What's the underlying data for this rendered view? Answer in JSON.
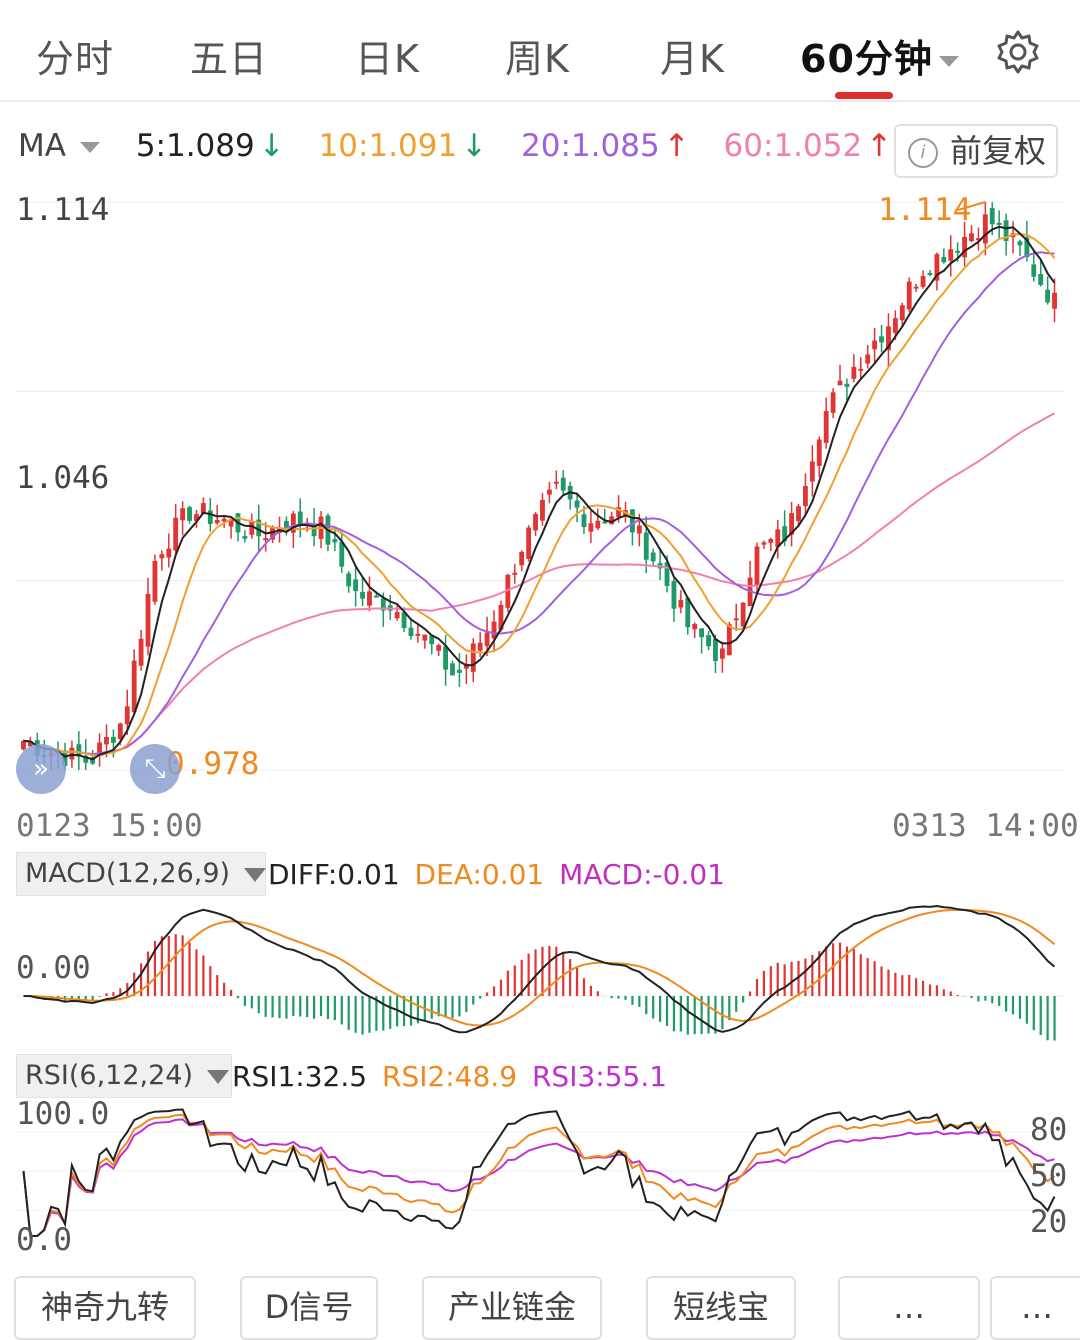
{
  "tabs": [
    {
      "label": "分时"
    },
    {
      "label": "五日"
    },
    {
      "label": "日K"
    },
    {
      "label": "周K"
    },
    {
      "label": "月K"
    },
    {
      "label": "60分钟"
    }
  ],
  "ma": {
    "label": "MA",
    "ma5": "5:1.089",
    "ma5_arrow": "↓",
    "ma10": "10:1.091",
    "ma10_arrow": "↓",
    "ma20": "20:1.085",
    "ma20_arrow": "↑",
    "ma60": "60:1.052",
    "ma60_arrow": "↑",
    "adjust_button": "前复权"
  },
  "price_axis": {
    "top": "1.114",
    "mid": "1.046",
    "bottom": "0.978"
  },
  "time_axis": {
    "start": "0123 15:00",
    "end": "0313 14:00"
  },
  "annotations": {
    "high": "1.114",
    "low": "0.978",
    "left_low_partial": "0.978"
  },
  "macd": {
    "selector": "MACD(12,26,9)",
    "diff": "DIFF:0.01",
    "dea": "DEA:0.01",
    "macd": "MACD:-0.01",
    "zero_label": "0.00"
  },
  "rsi": {
    "selector": "RSI(6,12,24)",
    "rsi1": "RSI1:32.5",
    "rsi2": "RSI2:48.9",
    "rsi3": "RSI3:55.1",
    "top_label": "100.0",
    "bottom_label": "0.0",
    "right_labels": [
      "80",
      "50",
      "20"
    ]
  },
  "bottom_buttons": [
    {
      "label": "神奇九转"
    },
    {
      "label": "D信号"
    },
    {
      "label": "产业链金"
    },
    {
      "label": "短线宝"
    },
    {
      "label": "…"
    },
    {
      "label": "…"
    }
  ],
  "colors": {
    "up": "#e03535",
    "down": "#1e9a66",
    "ma5": "#222222",
    "ma10": "#f0a030",
    "ma20": "#a060e0",
    "ma60": "#f080b0",
    "dea": "#f08a20",
    "macd_val": "#c030c0",
    "rsi3": "#c030d0",
    "accent": "#e02b2b"
  },
  "chart_data": [
    {
      "type": "candlestick",
      "title": "60分钟",
      "ylim": [
        0.978,
        1.114
      ],
      "x_start": "0123 15:00",
      "x_end": "0313 14:00",
      "max": 1.114,
      "min": 0.978,
      "close_path_keypoints": [
        0.985,
        0.982,
        0.98,
        0.99,
        1.03,
        1.04,
        1.038,
        1.034,
        1.038,
        1.036,
        1.02,
        1.018,
        1.01,
        1.0,
        1.012,
        1.032,
        1.045,
        1.038,
        1.04,
        1.028,
        1.012,
        1.005,
        1.03,
        1.035,
        1.062,
        1.075,
        1.085,
        1.098,
        1.104,
        1.11,
        1.102,
        1.09
      ],
      "series": [
        {
          "name": "MA5",
          "last": 1.089
        },
        {
          "name": "MA10",
          "last": 1.091
        },
        {
          "name": "MA20",
          "last": 1.085
        },
        {
          "name": "MA60",
          "last": 1.052
        }
      ]
    },
    {
      "type": "bar",
      "title": "MACD(12,26,9)",
      "series": [
        {
          "name": "DIFF",
          "last": 0.01
        },
        {
          "name": "DEA",
          "last": 0.01
        },
        {
          "name": "MACD",
          "last": -0.01
        }
      ]
    },
    {
      "type": "line",
      "title": "RSI(6,12,24)",
      "ylim": [
        0,
        100
      ],
      "series": [
        {
          "name": "RSI1",
          "last": 32.5
        },
        {
          "name": "RSI2",
          "last": 48.9
        },
        {
          "name": "RSI3",
          "last": 55.1
        }
      ]
    }
  ]
}
